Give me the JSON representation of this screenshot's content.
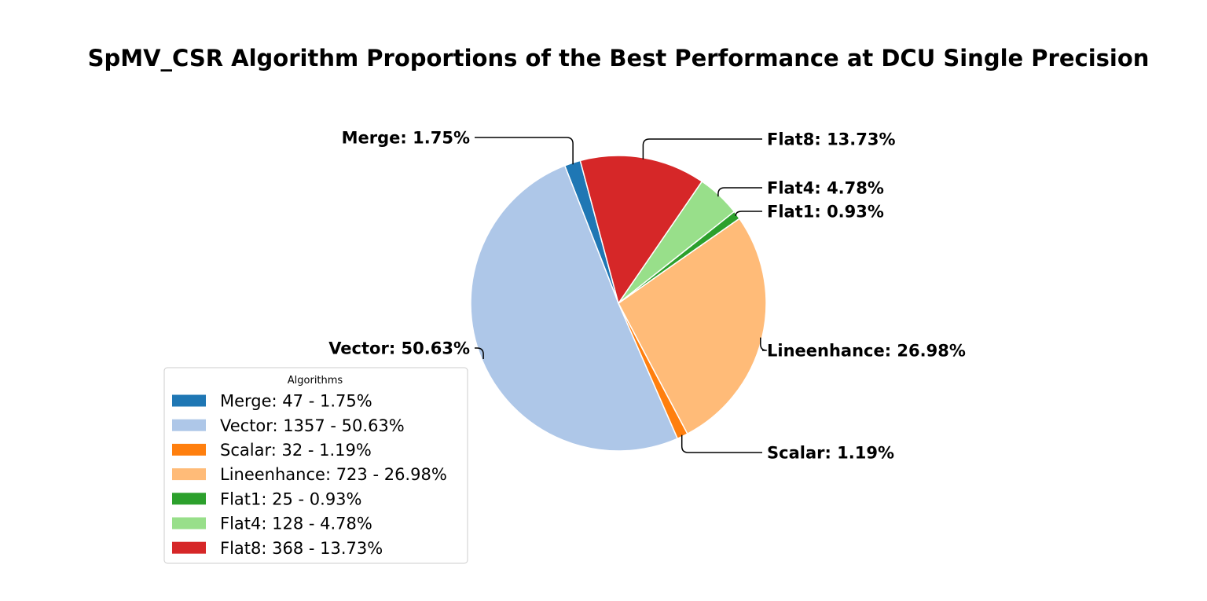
{
  "chart_data": {
    "type": "pie",
    "title": "SpMV_CSR Algorithm Proportions of the Best Performance at DCU Single Precision",
    "slices": [
      {
        "name": "Merge",
        "count": 47,
        "percent": 1.75,
        "color": "#1f77b4",
        "label": "Merge: 1.75%",
        "legend": "Merge: 47 - 1.75%"
      },
      {
        "name": "Vector",
        "count": 1357,
        "percent": 50.63,
        "color": "#aec7e8",
        "label": "Vector: 50.63%",
        "legend": "Vector: 1357 - 50.63%"
      },
      {
        "name": "Scalar",
        "count": 32,
        "percent": 1.19,
        "color": "#ff7f0e",
        "label": "Scalar: 1.19%",
        "legend": "Scalar: 32 - 1.19%"
      },
      {
        "name": "Lineenhance",
        "count": 723,
        "percent": 26.98,
        "color": "#ffbb78",
        "label": "Lineenhance: 26.98%",
        "legend": "Lineenhance: 723 - 26.98%"
      },
      {
        "name": "Flat1",
        "count": 25,
        "percent": 0.93,
        "color": "#2ca02c",
        "label": "Flat1: 0.93%",
        "legend": "Flat1: 25 - 0.93%"
      },
      {
        "name": "Flat4",
        "count": 128,
        "percent": 4.78,
        "color": "#98df8a",
        "label": "Flat4: 4.78%",
        "legend": "Flat4: 128 - 4.78%"
      },
      {
        "name": "Flat8",
        "count": 368,
        "percent": 13.73,
        "color": "#d62728",
        "label": "Flat8: 13.73%",
        "legend": "Flat8: 368 - 13.73%"
      }
    ],
    "start_angle_deg": 105,
    "direction": "counterclockwise",
    "legend_title": "Algorithms",
    "legend_position": "lower-left"
  }
}
